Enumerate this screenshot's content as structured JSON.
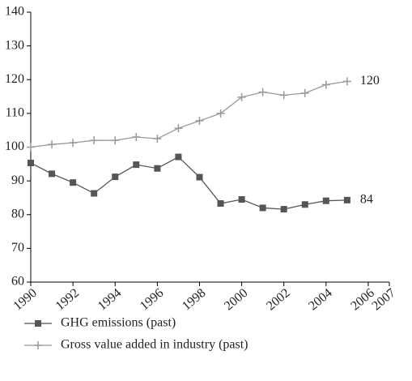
{
  "chart_data": {
    "type": "line",
    "x": [
      1990,
      1991,
      1992,
      1993,
      1994,
      1995,
      1996,
      1997,
      1998,
      1999,
      2000,
      2001,
      2002,
      2003,
      2004,
      2005
    ],
    "series": [
      {
        "name": "GHG emissions (past)",
        "color": "#555555",
        "marker": "square",
        "values": [
          95.3,
          92.1,
          89.5,
          86.3,
          91.2,
          94.8,
          93.7,
          97.1,
          91.1,
          83.3,
          84.5,
          82.0,
          81.6,
          83.0,
          84.1,
          84.3
        ],
        "end_label": "84"
      },
      {
        "name": "Gross value added in industry (past)",
        "color": "#999999",
        "marker": "plus",
        "values": [
          100,
          100.8,
          101.3,
          102,
          102,
          103,
          102.5,
          105.6,
          107.8,
          110,
          114.8,
          116.3,
          115.4,
          116,
          118.5,
          119.5
        ],
        "end_label": "120"
      }
    ],
    "xlim": [
      1990,
      2007
    ],
    "xticks": [
      1990,
      1992,
      1994,
      1996,
      1998,
      2000,
      2002,
      2004,
      2006,
      2007
    ],
    "ylim": [
      60,
      140
    ],
    "yticks": [
      60,
      70,
      80,
      90,
      100,
      110,
      120,
      130,
      140
    ],
    "grid": false
  }
}
